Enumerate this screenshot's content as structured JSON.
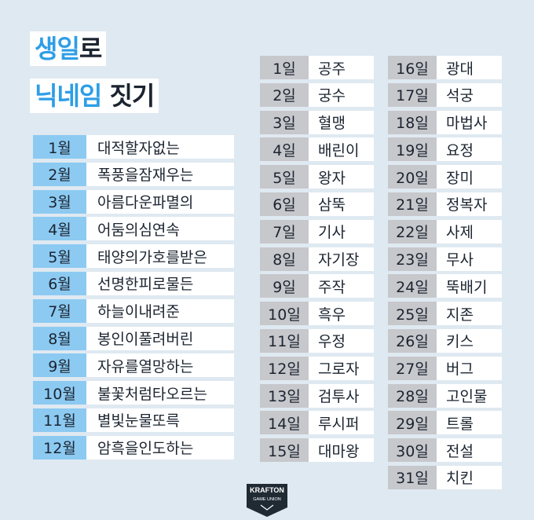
{
  "title": {
    "line1_accent": "생일",
    "line1_plain": "로",
    "line2_accent": "닉네임",
    "line2_plain": " 짓기"
  },
  "months": [
    {
      "label": "1월",
      "value": "대적할자없는"
    },
    {
      "label": "2월",
      "value": "폭풍을잠재우는"
    },
    {
      "label": "3월",
      "value": "아름다운파멸의"
    },
    {
      "label": "4월",
      "value": "어둠의심연속"
    },
    {
      "label": "5월",
      "value": "태양의가호를받은"
    },
    {
      "label": "6월",
      "value": "선명한피로물든"
    },
    {
      "label": "7월",
      "value": "하늘이내려준"
    },
    {
      "label": "8월",
      "value": "봉인이풀려버린"
    },
    {
      "label": "9월",
      "value": "자유를열망하는"
    },
    {
      "label": "10월",
      "value": "불꽃처럼타오르는"
    },
    {
      "label": "11월",
      "value": "별빛눈물또륵"
    },
    {
      "label": "12월",
      "value": "암흑을인도하는"
    }
  ],
  "days_left": [
    {
      "label": "1일",
      "value": "공주"
    },
    {
      "label": "2일",
      "value": "궁수"
    },
    {
      "label": "3일",
      "value": "혈맹"
    },
    {
      "label": "4일",
      "value": "배린이"
    },
    {
      "label": "5일",
      "value": "왕자"
    },
    {
      "label": "6일",
      "value": "삼뚝"
    },
    {
      "label": "7일",
      "value": "기사"
    },
    {
      "label": "8일",
      "value": "자기장"
    },
    {
      "label": "9일",
      "value": "주작"
    },
    {
      "label": "10일",
      "value": "흑우"
    },
    {
      "label": "11일",
      "value": "우정"
    },
    {
      "label": "12일",
      "value": "그로자"
    },
    {
      "label": "13일",
      "value": "검투사"
    },
    {
      "label": "14일",
      "value": "루시퍼"
    },
    {
      "label": "15일",
      "value": "대마왕"
    }
  ],
  "days_right": [
    {
      "label": "16일",
      "value": "광대"
    },
    {
      "label": "17일",
      "value": "석궁"
    },
    {
      "label": "18일",
      "value": "마법사"
    },
    {
      "label": "19일",
      "value": "요정"
    },
    {
      "label": "20일",
      "value": "장미"
    },
    {
      "label": "21일",
      "value": "정복자"
    },
    {
      "label": "22일",
      "value": "사제"
    },
    {
      "label": "23일",
      "value": "무사"
    },
    {
      "label": "24일",
      "value": "뚝배기"
    },
    {
      "label": "25일",
      "value": "지존"
    },
    {
      "label": "26일",
      "value": "키스"
    },
    {
      "label": "27일",
      "value": "버그"
    },
    {
      "label": "28일",
      "value": "고인물"
    },
    {
      "label": "29일",
      "value": "트롤"
    },
    {
      "label": "30일",
      "value": "전설"
    },
    {
      "label": "31일",
      "value": "치킨"
    }
  ],
  "logo": {
    "name": "KRAFTON",
    "sub": "GAME UNION"
  },
  "colors": {
    "background": "#dfe9f1",
    "accent": "#2e9ee6",
    "month_label_bg": "#8ccaf2",
    "day_label_bg": "#c7c8cc",
    "text": "#1b2430",
    "logo_bg": "#1f2a33"
  }
}
